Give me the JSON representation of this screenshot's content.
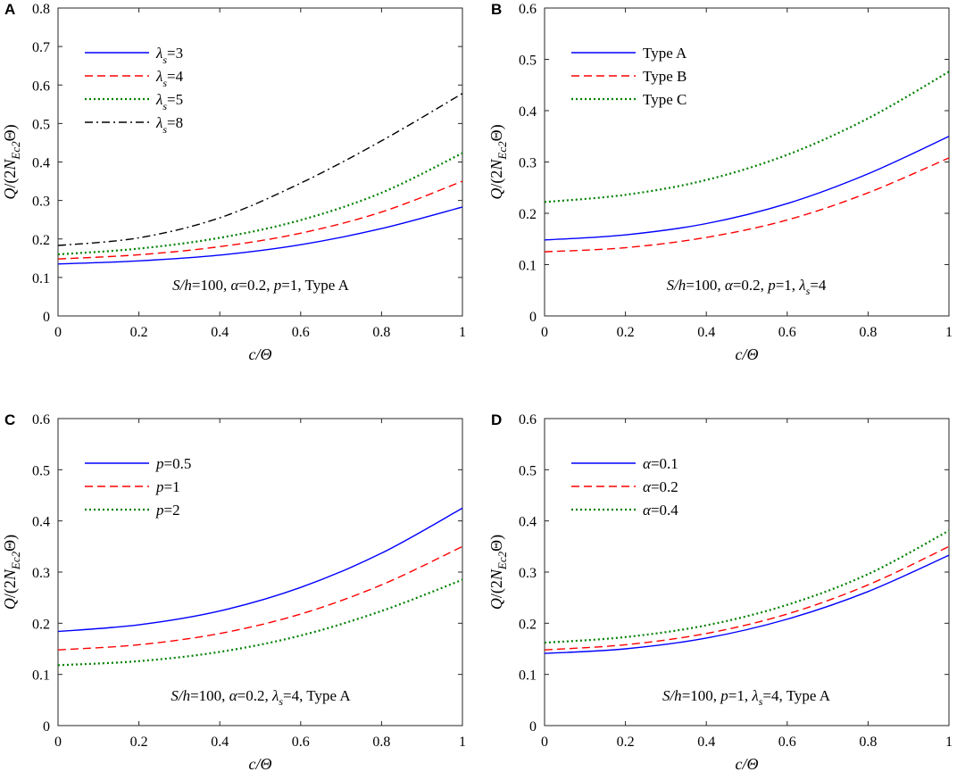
{
  "figure": {
    "colors": {
      "blue": "#0000ff",
      "red": "#ff0000",
      "green": "#008000",
      "black": "#000000"
    }
  },
  "chart_data": [
    {
      "id": "A",
      "type": "line",
      "panel_label": "A",
      "xlabel": "c/Θ",
      "ylabel": "Q/(2N_Ec2 Θ)",
      "xlim": [
        0,
        1
      ],
      "ylim": [
        0,
        0.8
      ],
      "x_ticks": [
        "0",
        "0.2",
        "0.4",
        "0.6",
        "0.8",
        "1"
      ],
      "y_ticks": [
        "0",
        "0.1",
        "0.2",
        "0.3",
        "0.4",
        "0.5",
        "0.6",
        "0.7",
        "0.8"
      ],
      "x": [
        0,
        0.2,
        0.4,
        0.6,
        0.8,
        1
      ],
      "series": [
        {
          "name": "λs=3",
          "legend_main": "λ",
          "legend_sub": "s",
          "legend_tail": "=3",
          "values": [
            0.135,
            0.143,
            0.158,
            0.185,
            0.227,
            0.283
          ],
          "color": "#0000ff",
          "dash": "solid"
        },
        {
          "name": "λs=4",
          "legend_main": "λ",
          "legend_sub": "s",
          "legend_tail": "=4",
          "values": [
            0.148,
            0.159,
            0.18,
            0.215,
            0.27,
            0.35
          ],
          "color": "#ff0000",
          "dash": "dashed"
        },
        {
          "name": "λs=5",
          "legend_main": "λ",
          "legend_sub": "s",
          "legend_tail": "=5",
          "values": [
            0.16,
            0.175,
            0.203,
            0.249,
            0.32,
            0.423
          ],
          "color": "#008000",
          "dash": "dotted"
        },
        {
          "name": "λs=8",
          "legend_main": "λ",
          "legend_sub": "s",
          "legend_tail": "=8",
          "values": [
            0.183,
            0.203,
            0.255,
            0.345,
            0.455,
            0.578
          ],
          "color": "#000000",
          "dash": "dashdot"
        }
      ],
      "legend_position": "top-left",
      "annotation": "S/h=100, α=0.2, p=1, Type A"
    },
    {
      "id": "B",
      "type": "line",
      "panel_label": "B",
      "xlabel": "c/Θ",
      "ylabel": "Q/(2N_Ec2 Θ)",
      "xlim": [
        0,
        1
      ],
      "ylim": [
        0,
        0.6
      ],
      "x_ticks": [
        "0",
        "0.2",
        "0.4",
        "0.6",
        "0.8",
        "1"
      ],
      "y_ticks": [
        "0",
        "0.1",
        "0.2",
        "0.3",
        "0.4",
        "0.5",
        "0.6"
      ],
      "x": [
        0,
        0.2,
        0.4,
        0.6,
        0.8,
        1
      ],
      "series": [
        {
          "name": "Type A",
          "legend_main": "Type A",
          "legend_sub": "",
          "legend_tail": "",
          "values": [
            0.148,
            0.158,
            0.18,
            0.219,
            0.277,
            0.35
          ],
          "color": "#0000ff",
          "dash": "solid"
        },
        {
          "name": "Type B",
          "legend_main": "Type B",
          "legend_sub": "",
          "legend_tail": "",
          "values": [
            0.125,
            0.133,
            0.153,
            0.187,
            0.24,
            0.308
          ],
          "color": "#ff0000",
          "dash": "dashed"
        },
        {
          "name": "Type C",
          "legend_main": "Type C",
          "legend_sub": "",
          "legend_tail": "",
          "values": [
            0.222,
            0.236,
            0.265,
            0.314,
            0.385,
            0.476
          ],
          "color": "#008000",
          "dash": "dotted"
        }
      ],
      "legend_position": "top-left",
      "annotation": "S/h=100, α=0.2, p=1, λs=4"
    },
    {
      "id": "C",
      "type": "line",
      "panel_label": "C",
      "xlabel": "c/Θ",
      "ylabel": "Q/(2N_Ec2 Θ)",
      "xlim": [
        0,
        1
      ],
      "ylim": [
        0,
        0.6
      ],
      "x_ticks": [
        "0",
        "0.2",
        "0.4",
        "0.6",
        "0.8",
        "1"
      ],
      "y_ticks": [
        "0",
        "0.1",
        "0.2",
        "0.3",
        "0.4",
        "0.5",
        "0.6"
      ],
      "x": [
        0,
        0.2,
        0.4,
        0.6,
        0.8,
        1
      ],
      "series": [
        {
          "name": "p=0.5",
          "legend_main": "p",
          "legend_sub": "",
          "legend_tail": "=0.5",
          "values": [
            0.184,
            0.197,
            0.224,
            0.27,
            0.337,
            0.425
          ],
          "color": "#0000ff",
          "dash": "solid"
        },
        {
          "name": "p=1",
          "legend_main": "p",
          "legend_sub": "",
          "legend_tail": "=1",
          "values": [
            0.148,
            0.158,
            0.18,
            0.218,
            0.275,
            0.35
          ],
          "color": "#ff0000",
          "dash": "dashed"
        },
        {
          "name": "p=2",
          "legend_main": "p",
          "legend_sub": "",
          "legend_tail": "=2",
          "values": [
            0.118,
            0.126,
            0.144,
            0.176,
            0.224,
            0.285
          ],
          "color": "#008000",
          "dash": "dotted"
        }
      ],
      "legend_position": "top-left",
      "annotation": "S/h=100, α=0.2, λs=4, Type A"
    },
    {
      "id": "D",
      "type": "line",
      "panel_label": "D",
      "xlabel": "c/Θ",
      "ylabel": "Q/(2N_Ec2 Θ)",
      "xlim": [
        0,
        1
      ],
      "ylim": [
        0,
        0.6
      ],
      "x_ticks": [
        "0",
        "0.2",
        "0.4",
        "0.6",
        "0.8",
        "1"
      ],
      "y_ticks": [
        "0",
        "0.1",
        "0.2",
        "0.3",
        "0.4",
        "0.5",
        "0.6"
      ],
      "x": [
        0,
        0.2,
        0.4,
        0.6,
        0.8,
        1
      ],
      "series": [
        {
          "name": "α=0.1",
          "legend_main": "α",
          "legend_sub": "",
          "legend_tail": "=0.1",
          "values": [
            0.141,
            0.15,
            0.171,
            0.208,
            0.262,
            0.333
          ],
          "color": "#0000ff",
          "dash": "solid"
        },
        {
          "name": "α=0.2",
          "legend_main": "α",
          "legend_sub": "",
          "legend_tail": "=0.2",
          "values": [
            0.148,
            0.158,
            0.18,
            0.218,
            0.275,
            0.35
          ],
          "color": "#ff0000",
          "dash": "dashed"
        },
        {
          "name": "α=0.4",
          "legend_main": "α",
          "legend_sub": "",
          "legend_tail": "=0.4",
          "values": [
            0.162,
            0.173,
            0.196,
            0.236,
            0.296,
            0.381
          ],
          "color": "#008000",
          "dash": "dotted"
        }
      ],
      "legend_position": "top-left",
      "annotation": "S/h=100, p=1, λs=4, Type A"
    }
  ]
}
